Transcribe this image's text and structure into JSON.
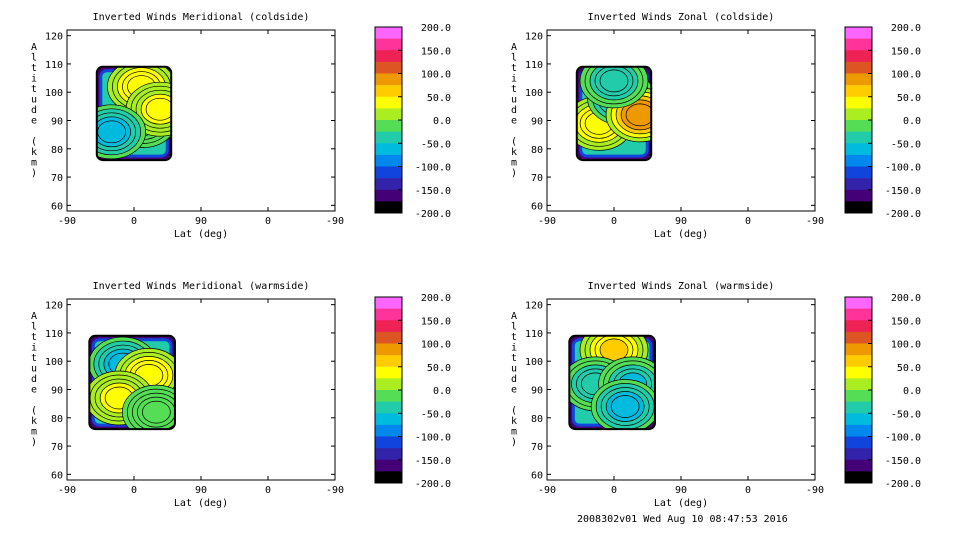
{
  "footer": "2008302v01 Wed Aug 10 08:47:53 2016",
  "colorbar": {
    "labels": [
      "200.0",
      "150.0",
      "100.0",
      "50.0",
      "0.0",
      "-50.0",
      "-100.0",
      "-150.0",
      "-200.0"
    ],
    "colors": [
      "#ff66ff",
      "#ff3399",
      "#ee2255",
      "#dd5522",
      "#ee9900",
      "#ffcc00",
      "#ffff00",
      "#aaee22",
      "#55dd55",
      "#22ccaa",
      "#00bbdd",
      "#0088ee",
      "#1144dd",
      "#3322aa",
      "#440077",
      "#000000"
    ]
  },
  "chart_data": [
    {
      "type": "contour",
      "title": "Inverted Winds Meridional (coldside)",
      "xlabel": "Lat (deg)",
      "ylabel": "Altitude (km)",
      "xticks": [
        "-90",
        "0",
        "90",
        "0",
        "-90"
      ],
      "yticks": [
        "60",
        "70",
        "80",
        "90",
        "100",
        "110",
        "120"
      ],
      "ylim": [
        58,
        122
      ],
      "data_region": {
        "lat_from": -50,
        "lat_to": 50,
        "alt_from": 76,
        "alt_to": 109
      },
      "features": [
        {
          "lat": 12,
          "alt": 90,
          "value": -20
        },
        {
          "lat": 10,
          "alt": 102,
          "value": 60
        },
        {
          "lat": 35,
          "alt": 94,
          "value": 45
        },
        {
          "lat": -30,
          "alt": 86,
          "value": -90
        }
      ]
    },
    {
      "type": "contour",
      "title": "Inverted Winds Zonal (coldside)",
      "xlabel": "Lat (deg)",
      "ylabel": "Altitude (km)",
      "xticks": [
        "-90",
        "0",
        "90",
        "0",
        "-90"
      ],
      "yticks": [
        "60",
        "70",
        "80",
        "90",
        "100",
        "110",
        "120"
      ],
      "ylim": [
        58,
        122
      ],
      "data_region": {
        "lat_from": -50,
        "lat_to": 50,
        "alt_from": 76,
        "alt_to": 109
      },
      "features": [
        {
          "lat": -20,
          "alt": 89,
          "value": 60
        },
        {
          "lat": 10,
          "alt": 98,
          "value": -80
        },
        {
          "lat": 35,
          "alt": 92,
          "value": 120
        },
        {
          "lat": 0,
          "alt": 104,
          "value": -60
        }
      ]
    },
    {
      "type": "contour",
      "title": "Inverted Winds Meridional (warmside)",
      "xlabel": "Lat (deg)",
      "ylabel": "Altitude (km)",
      "xticks": [
        "-90",
        "0",
        "90",
        "0",
        "-90"
      ],
      "yticks": [
        "60",
        "70",
        "80",
        "90",
        "100",
        "110",
        "120"
      ],
      "ylim": [
        58,
        122
      ],
      "data_region": {
        "lat_from": -60,
        "lat_to": 55,
        "alt_from": 76,
        "alt_to": 109
      },
      "features": [
        {
          "lat": -15,
          "alt": 99,
          "value": -80
        },
        {
          "lat": 20,
          "alt": 95,
          "value": 60
        },
        {
          "lat": -20,
          "alt": 87,
          "value": 50
        },
        {
          "lat": 30,
          "alt": 82,
          "value": -20
        }
      ]
    },
    {
      "type": "contour",
      "title": "Inverted Winds Zonal (warmside)",
      "xlabel": "Lat (deg)",
      "ylabel": "Altitude (km)",
      "xticks": [
        "-90",
        "0",
        "90",
        "0",
        "-90"
      ],
      "yticks": [
        "60",
        "70",
        "80",
        "90",
        "100",
        "110",
        "120"
      ],
      "ylim": [
        58,
        122
      ],
      "data_region": {
        "lat_from": -60,
        "lat_to": 55,
        "alt_from": 76,
        "alt_to": 109
      },
      "features": [
        {
          "lat": 0,
          "alt": 104,
          "value": 70
        },
        {
          "lat": -25,
          "alt": 92,
          "value": -60
        },
        {
          "lat": 25,
          "alt": 92,
          "value": -70
        },
        {
          "lat": 15,
          "alt": 84,
          "value": -80
        }
      ]
    }
  ]
}
